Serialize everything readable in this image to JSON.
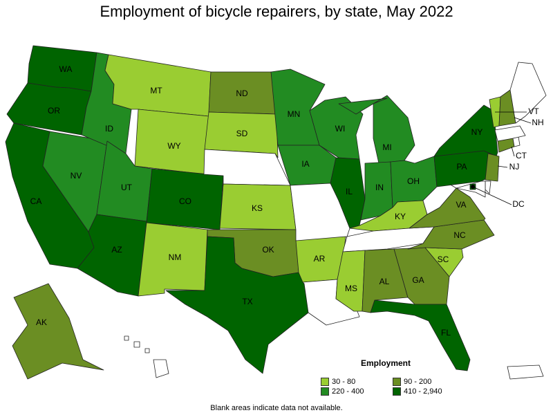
{
  "title": "Employment of bicycle repairers, by state, May 2022",
  "footnote": "Blank areas indicate data not available.",
  "legend": {
    "title": "Employment",
    "items": [
      {
        "label": "30 - 80",
        "color": "#9ACD32"
      },
      {
        "label": "90 - 200",
        "color": "#6B8E23"
      },
      {
        "label": "220 - 400",
        "color": "#228B22"
      },
      {
        "label": "410 - 2,940",
        "color": "#006400"
      }
    ]
  },
  "colors": {
    "c1": "#9ACD32",
    "c2": "#6B8E23",
    "c3": "#228B22",
    "c4": "#006400",
    "none": "#ffffff"
  },
  "states": [
    {
      "abbr": "WA",
      "class": "c4"
    },
    {
      "abbr": "OR",
      "class": "c4"
    },
    {
      "abbr": "CA",
      "class": "c4"
    },
    {
      "abbr": "NV",
      "class": "c3"
    },
    {
      "abbr": "ID",
      "class": "c3"
    },
    {
      "abbr": "MT",
      "class": "c1"
    },
    {
      "abbr": "WY",
      "class": "c1"
    },
    {
      "abbr": "UT",
      "class": "c3"
    },
    {
      "abbr": "AZ",
      "class": "c4"
    },
    {
      "abbr": "CO",
      "class": "c4"
    },
    {
      "abbr": "NM",
      "class": "c1"
    },
    {
      "abbr": "ND",
      "class": "c2"
    },
    {
      "abbr": "SD",
      "class": "c1"
    },
    {
      "abbr": "NE",
      "class": "none"
    },
    {
      "abbr": "KS",
      "class": "c1"
    },
    {
      "abbr": "OK",
      "class": "c2"
    },
    {
      "abbr": "TX",
      "class": "c4"
    },
    {
      "abbr": "MN",
      "class": "c3"
    },
    {
      "abbr": "IA",
      "class": "c3"
    },
    {
      "abbr": "MO",
      "class": "none"
    },
    {
      "abbr": "AR",
      "class": "c1"
    },
    {
      "abbr": "LA",
      "class": "none"
    },
    {
      "abbr": "WI",
      "class": "c3"
    },
    {
      "abbr": "IL",
      "class": "c4"
    },
    {
      "abbr": "MI",
      "class": "c3"
    },
    {
      "abbr": "IN",
      "class": "c3"
    },
    {
      "abbr": "OH",
      "class": "c3"
    },
    {
      "abbr": "KY",
      "class": "c1"
    },
    {
      "abbr": "TN",
      "class": "none"
    },
    {
      "abbr": "MS",
      "class": "c1"
    },
    {
      "abbr": "AL",
      "class": "c2"
    },
    {
      "abbr": "GA",
      "class": "c2"
    },
    {
      "abbr": "FL",
      "class": "c4"
    },
    {
      "abbr": "SC",
      "class": "c1"
    },
    {
      "abbr": "NC",
      "class": "c2"
    },
    {
      "abbr": "VA",
      "class": "c2"
    },
    {
      "abbr": "WV",
      "class": "none"
    },
    {
      "abbr": "PA",
      "class": "c4"
    },
    {
      "abbr": "NY",
      "class": "c4"
    },
    {
      "abbr": "NJ",
      "class": "c2"
    },
    {
      "abbr": "DE",
      "class": "none"
    },
    {
      "abbr": "MD",
      "class": "none"
    },
    {
      "abbr": "DC",
      "class": "c4"
    },
    {
      "abbr": "CT",
      "class": "c2"
    },
    {
      "abbr": "RI",
      "class": "none"
    },
    {
      "abbr": "MA",
      "class": "none"
    },
    {
      "abbr": "VT",
      "class": "c1"
    },
    {
      "abbr": "NH",
      "class": "c2"
    },
    {
      "abbr": "ME",
      "class": "none"
    },
    {
      "abbr": "AK",
      "class": "c2"
    },
    {
      "abbr": "HI",
      "class": "none"
    },
    {
      "abbr": "PR",
      "class": "none"
    }
  ]
}
